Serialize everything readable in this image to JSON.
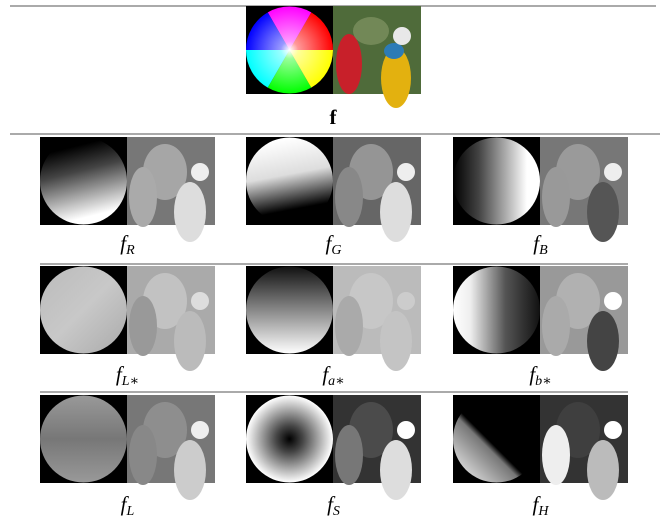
{
  "figure": {
    "top": {
      "caption": "f"
    },
    "rows": [
      [
        {
          "symbol": "f",
          "subscript": "R"
        },
        {
          "symbol": "f",
          "subscript": "G"
        },
        {
          "symbol": "f",
          "subscript": "B"
        }
      ],
      [
        {
          "symbol": "f",
          "subscript": "L∗"
        },
        {
          "symbol": "f",
          "subscript": "a∗"
        },
        {
          "symbol": "f",
          "subscript": "b∗"
        }
      ],
      [
        {
          "symbol": "f",
          "subscript": "L"
        },
        {
          "symbol": "f",
          "subscript": "S"
        },
        {
          "symbol": "f",
          "subscript": "H"
        }
      ]
    ]
  }
}
